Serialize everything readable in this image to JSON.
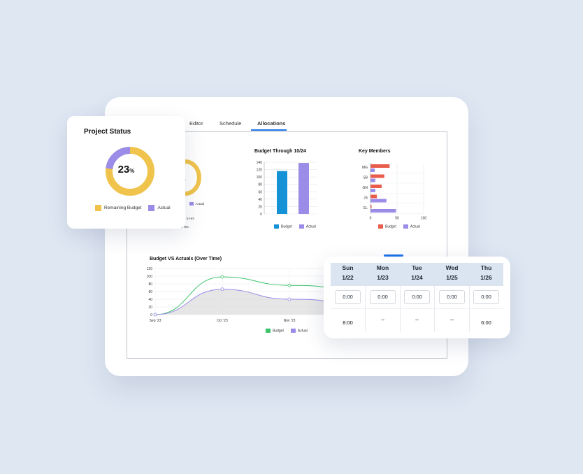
{
  "tabs": [
    "Editor",
    "Schedule",
    "Allocations"
  ],
  "active_tab": "Allocations",
  "project_status": {
    "title": "Project Status",
    "percent": "23",
    "percent_sign": "%",
    "legend": [
      "Remaining Budget",
      "Actual"
    ],
    "colors": {
      "remaining": "#f0c44c",
      "actual": "#9b8ce8"
    },
    "actual_fraction": 0.23
  },
  "background_partial": {
    "legend": [
      "get",
      "Actual"
    ],
    "hrs1": "5 Hrs",
    "hrs2": "al Hrs"
  },
  "schedule": {
    "days": [
      {
        "day": "Sun",
        "date": "1/22",
        "time": "0:00",
        "hours": "8:00"
      },
      {
        "day": "Mon",
        "date": "1/23",
        "time": "0:00",
        "hours": "--"
      },
      {
        "day": "Tue",
        "date": "1/24",
        "time": "0:00",
        "hours": "--"
      },
      {
        "day": "Wed",
        "date": "1/25",
        "time": "0:00",
        "hours": "--"
      },
      {
        "day": "Thu",
        "date": "1/26",
        "time": "0:00",
        "hours": "6:00"
      }
    ]
  },
  "chart_data": [
    {
      "type": "bar",
      "title": "Budget Through 10/24",
      "categories": [
        "Budget",
        "Actual"
      ],
      "values": [
        116,
        138
      ],
      "colors": [
        "#1591d6",
        "#9b8ce8"
      ],
      "ylim": [
        0,
        140
      ],
      "yticks": [
        "0",
        "20",
        "40",
        "60",
        "80",
        "100",
        "120",
        "140"
      ],
      "legend": [
        "Budget",
        "Actual"
      ]
    },
    {
      "type": "bar",
      "orientation": "horizontal",
      "title": "Key Members",
      "categories": [
        "MG",
        "SB",
        "GN",
        "JS",
        "EL"
      ],
      "series": [
        {
          "name": "Budget",
          "color": "#e85c4a",
          "values": [
            36,
            26,
            21,
            12,
            2
          ]
        },
        {
          "name": "Actual",
          "color": "#9b8ce8",
          "values": [
            8,
            9,
            9,
            30,
            48
          ]
        }
      ],
      "xlim": [
        0,
        100
      ],
      "xticks": [
        "0",
        "50",
        "100"
      ]
    },
    {
      "type": "line",
      "title": "Budget VS Actuals (Over Time)",
      "x": [
        "Sep '23",
        "Oct '23",
        "Nov '23"
      ],
      "ylim": [
        0,
        120
      ],
      "yticks": [
        "0",
        "20",
        "40",
        "60",
        "80",
        "100",
        "120"
      ],
      "series": [
        {
          "name": "Budget",
          "color": "#3cc36b",
          "values": [
            0,
            98,
            76
          ]
        },
        {
          "name": "Actual",
          "color": "#9b8ce8",
          "values": [
            0,
            66,
            40
          ]
        }
      ],
      "legend": [
        "Budget",
        "Actual"
      ]
    }
  ]
}
